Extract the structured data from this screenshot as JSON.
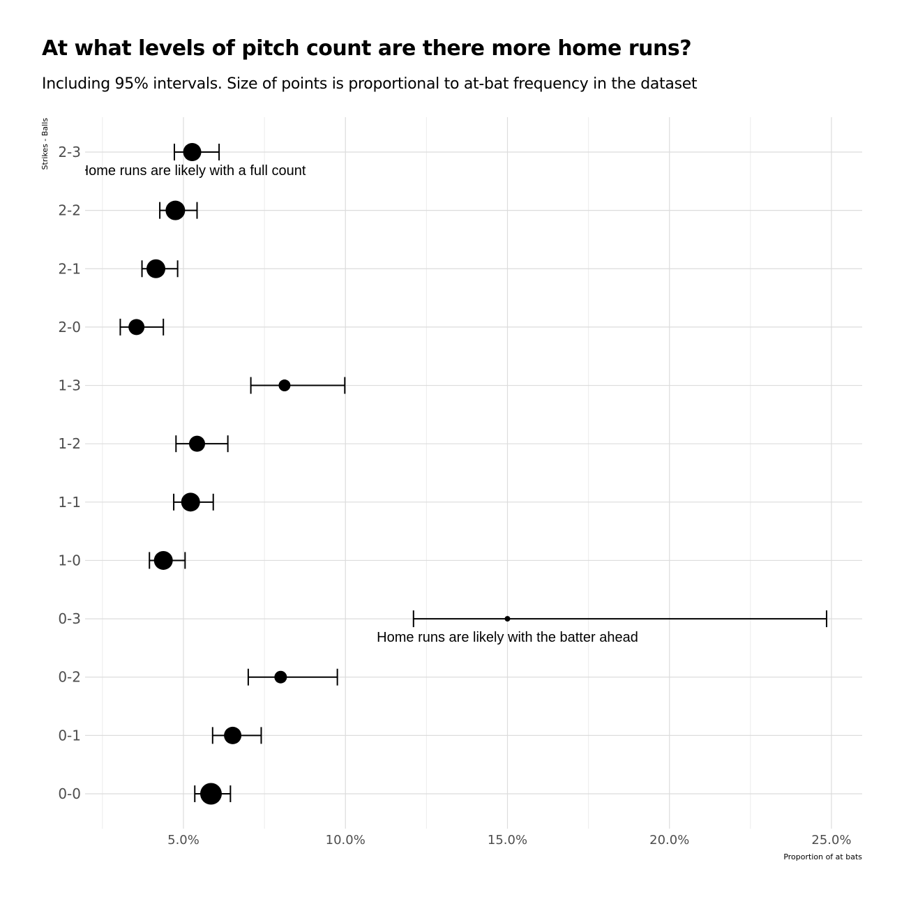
{
  "chart_data": {
    "type": "scatter",
    "title": "At what levels of pitch count are there more home runs?",
    "subtitle": "Including 95% intervals. Size of points is proportional to at-bat frequency in the dataset",
    "xlabel": "Proportion of at bats",
    "ylabel": "Strikes - Balls",
    "xlim": [
      0.018,
      0.2595
    ],
    "x_ticks": [
      0.05,
      0.1,
      0.15,
      0.2,
      0.25
    ],
    "x_tick_labels": [
      "5.0%",
      "10.0%",
      "15.0%",
      "20.0%",
      "25.0%"
    ],
    "grid": true,
    "categories": [
      "0-0",
      "0-1",
      "0-2",
      "0-3",
      "1-0",
      "1-1",
      "1-2",
      "1-3",
      "2-0",
      "2-1",
      "2-2",
      "2-3"
    ],
    "series": [
      {
        "points": [
          {
            "category": "0-0",
            "x": 0.0585,
            "lower": 0.0535,
            "upper": 0.0645,
            "size": 15.5
          },
          {
            "category": "0-1",
            "x": 0.0652,
            "lower": 0.059,
            "upper": 0.074,
            "size": 12.5
          },
          {
            "category": "0-2",
            "x": 0.08,
            "lower": 0.07,
            "upper": 0.0975,
            "size": 9
          },
          {
            "category": "0-3",
            "x": 0.15,
            "lower": 0.121,
            "upper": 0.2485,
            "size": 4
          },
          {
            "category": "1-0",
            "x": 0.0438,
            "lower": 0.0395,
            "upper": 0.0505,
            "size": 13.5
          },
          {
            "category": "1-1",
            "x": 0.0522,
            "lower": 0.047,
            "upper": 0.0592,
            "size": 13.5
          },
          {
            "category": "1-2",
            "x": 0.0542,
            "lower": 0.0477,
            "upper": 0.0637,
            "size": 11.5
          },
          {
            "category": "1-3",
            "x": 0.0812,
            "lower": 0.0708,
            "upper": 0.0998,
            "size": 8.5
          },
          {
            "category": "2-0",
            "x": 0.0355,
            "lower": 0.0305,
            "upper": 0.0438,
            "size": 11.5
          },
          {
            "category": "2-1",
            "x": 0.0415,
            "lower": 0.0372,
            "upper": 0.0482,
            "size": 13.5
          },
          {
            "category": "2-2",
            "x": 0.0475,
            "lower": 0.0427,
            "upper": 0.0542,
            "size": 14
          },
          {
            "category": "2-3",
            "x": 0.0527,
            "lower": 0.0472,
            "upper": 0.061,
            "size": 13
          }
        ]
      }
    ],
    "annotations": [
      {
        "text": "Home runs are likely with a full count",
        "category": "2-3",
        "x": 0.0527
      },
      {
        "text": "Home runs are likely with the batter ahead",
        "category": "0-3",
        "x": 0.15
      }
    ]
  }
}
